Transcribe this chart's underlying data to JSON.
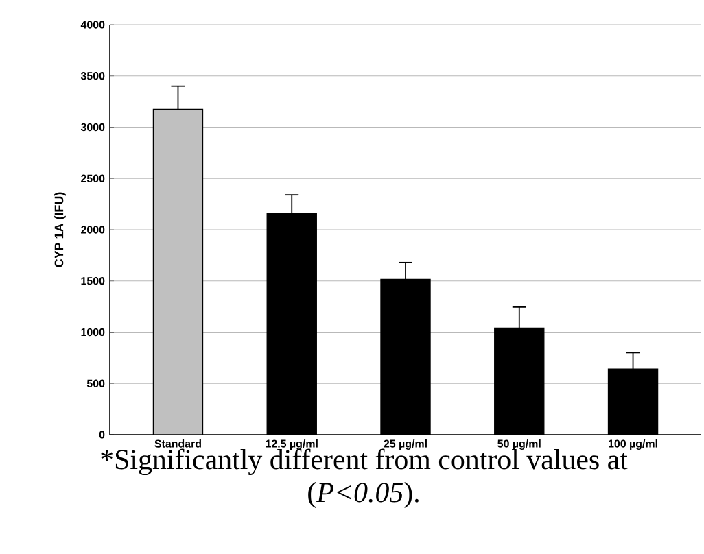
{
  "chart_data": {
    "type": "bar",
    "ylabel": "CYP 1A (IFU)",
    "categories": [
      "Standard",
      "12.5 µg/ml",
      "25 µg/ml",
      "50 µg/ml",
      "100 µg/ml"
    ],
    "values": [
      3175,
      2160,
      1515,
      1040,
      640
    ],
    "colors": [
      "#c0c0c0",
      "#000000",
      "#000000",
      "#000000",
      "#000000"
    ],
    "errors": [
      [
        3175,
        3400
      ],
      [
        2160,
        2340
      ],
      [
        1515,
        1680
      ],
      [
        1040,
        1245
      ],
      [
        640,
        800
      ]
    ],
    "ylim": [
      0,
      4000
    ],
    "yticks": [
      0,
      500,
      1000,
      1500,
      2000,
      2500,
      3000,
      3500,
      4000
    ],
    "grid": "y",
    "annotations": [
      "*Significantly different from control values at",
      "(*P<0.05*)."
    ]
  }
}
